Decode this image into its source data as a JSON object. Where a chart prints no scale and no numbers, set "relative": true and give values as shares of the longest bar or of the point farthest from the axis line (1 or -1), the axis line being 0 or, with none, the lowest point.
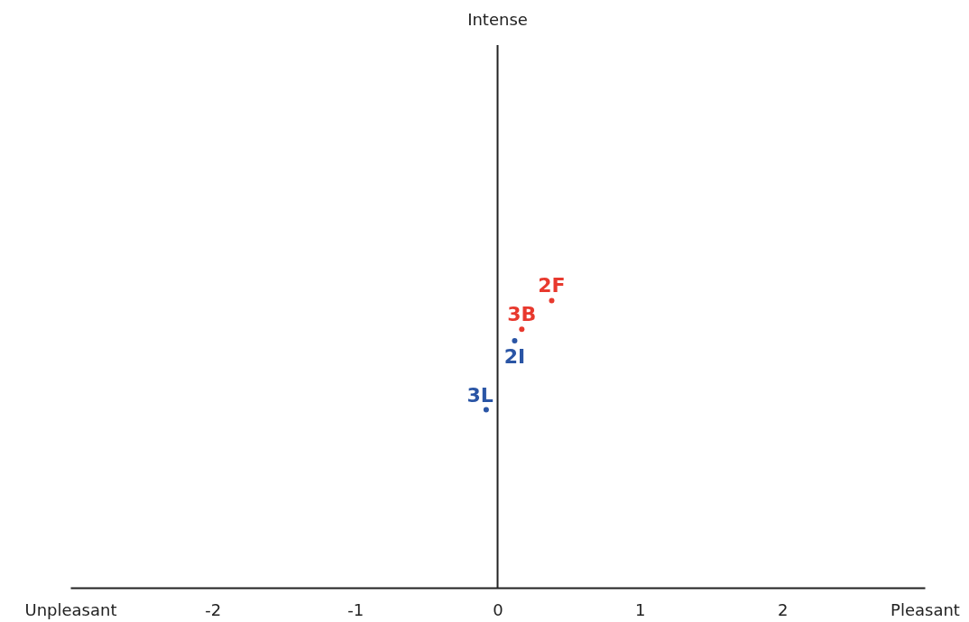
{
  "chart_data": {
    "type": "scatter",
    "relative": true,
    "xlim": [
      -3,
      3
    ],
    "xticks": [
      {
        "value": -3,
        "label": "Unpleasant"
      },
      -2,
      -1,
      0,
      1,
      2,
      {
        "value": 3,
        "label": "Pleasant"
      }
    ],
    "series": [
      {
        "color": "#e8392e",
        "x": [
          0.38,
          0.17
        ],
        "values": [
          1,
          0.9
        ]
      },
      {
        "color": "#2a55a5",
        "x": [
          0.12,
          -0.08
        ],
        "values": [
          0.86,
          0.62
        ]
      }
    ],
    "annotations": [
      {
        "text": "2F",
        "x": 0.38,
        "y": 1
      },
      {
        "text": "3B",
        "x": 0.17,
        "y": 0.9
      },
      {
        "text": "2I",
        "x": 0.12,
        "y": 0.86
      },
      {
        "text": "3L",
        "x": -0.08,
        "y": 0.62
      }
    ],
    "ref_lines": [
      {
        "axis": "x",
        "value": 0,
        "label": "Intense",
        "color": "#222222"
      }
    ],
    "grid": false,
    "legend": false,
    "marker": "circle"
  }
}
